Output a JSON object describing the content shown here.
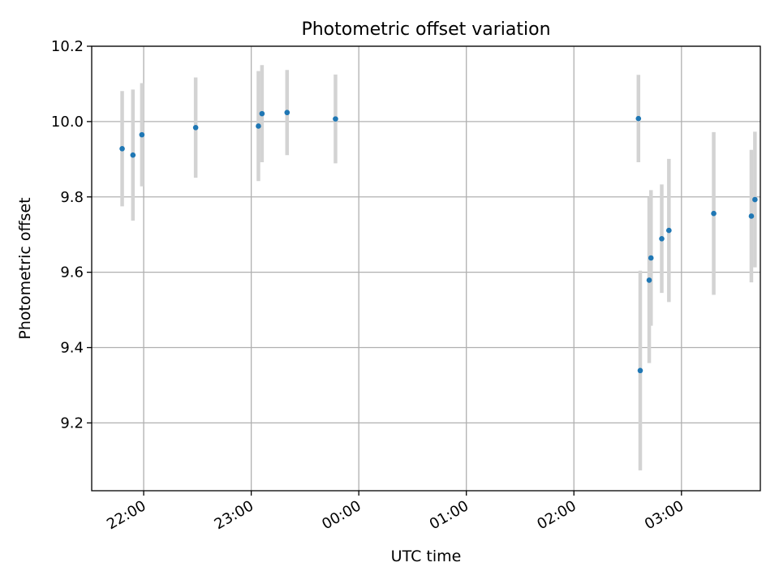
{
  "chart_data": {
    "type": "scatter",
    "title": "Photometric offset variation",
    "xlabel": "UTC time",
    "ylabel": "Photometric offset",
    "xlim": [
      "21:31",
      "03:44"
    ],
    "ylim": [
      9.02,
      10.2
    ],
    "grid": true,
    "x_ticks": [
      "22:00",
      "23:00",
      "00:00",
      "01:00",
      "02:00",
      "03:00"
    ],
    "y_ticks": [
      9.2,
      9.4,
      9.6,
      9.8,
      10.0,
      10.2
    ],
    "y_tick_labels": [
      "9.2",
      "9.4",
      "9.6",
      "9.8",
      "10.0",
      "10.2"
    ],
    "series": [
      {
        "marker_color": "#1f77b4",
        "errorbar_color": "#d3d3d3",
        "points": [
          {
            "x": "21:48",
            "y": 9.928,
            "err": 0.153
          },
          {
            "x": "21:54",
            "y": 9.911,
            "err": 0.174
          },
          {
            "x": "21:59",
            "y": 9.965,
            "err": 0.137
          },
          {
            "x": "22:29",
            "y": 9.984,
            "err": 0.133
          },
          {
            "x": "23:04",
            "y": 9.988,
            "err": 0.146
          },
          {
            "x": "23:06",
            "y": 10.021,
            "err": 0.129
          },
          {
            "x": "23:20",
            "y": 10.024,
            "err": 0.113
          },
          {
            "x": "23:47",
            "y": 10.007,
            "err": 0.118
          },
          {
            "x": "02:36",
            "y": 10.008,
            "err": 0.116
          },
          {
            "x": "02:37",
            "y": 9.339,
            "err": 0.265
          },
          {
            "x": "02:42",
            "y": 9.579,
            "err": 0.22
          },
          {
            "x": "02:43",
            "y": 9.638,
            "err": 0.18
          },
          {
            "x": "02:49",
            "y": 9.689,
            "err": 0.144
          },
          {
            "x": "02:53",
            "y": 9.711,
            "err": 0.19
          },
          {
            "x": "03:18",
            "y": 9.756,
            "err": 0.216
          },
          {
            "x": "03:39",
            "y": 9.749,
            "err": 0.176
          },
          {
            "x": "03:41",
            "y": 9.793,
            "err": 0.18
          }
        ]
      }
    ]
  }
}
